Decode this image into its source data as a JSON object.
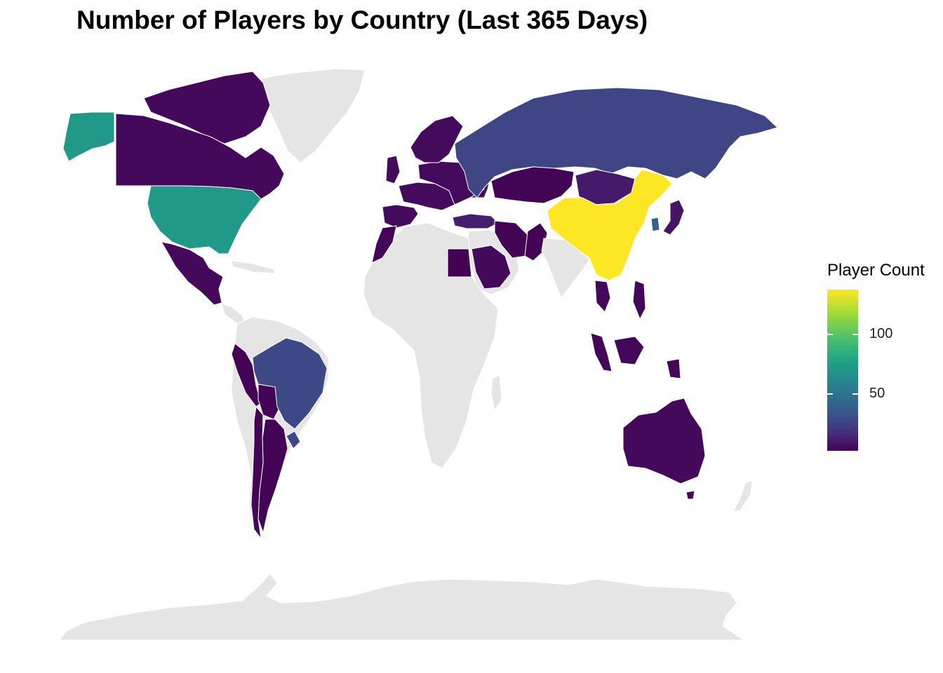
{
  "title": "Number of Players by Country (Last 365 Days)",
  "legend": {
    "title": "Player Count",
    "ticks": [
      {
        "value": 50,
        "label": "50"
      },
      {
        "value": 100,
        "label": "100"
      }
    ],
    "min": 2,
    "max": 138,
    "palette": [
      "#440154",
      "#46327e",
      "#365c8d",
      "#277f8e",
      "#1fa187",
      "#4ac16d",
      "#a0da39",
      "#fde725"
    ]
  },
  "colors": {
    "no_data": "#e5e5e5",
    "border": "#ffffff"
  },
  "countries": [
    {
      "name": "China",
      "count": 138
    },
    {
      "name": "United States",
      "count": 75
    },
    {
      "name": "Alaska (United States)",
      "count": 75
    },
    {
      "name": "Russia",
      "count": 30
    },
    {
      "name": "Brazil",
      "count": 32
    },
    {
      "name": "Uruguay",
      "count": 32
    },
    {
      "name": "South Korea",
      "count": 45
    },
    {
      "name": "Mongolia",
      "count": 12
    },
    {
      "name": "Japan",
      "count": 10
    },
    {
      "name": "Turkey",
      "count": 14
    },
    {
      "name": "Canada",
      "count": 5
    },
    {
      "name": "Mexico",
      "count": 5
    },
    {
      "name": "Kazakhstan",
      "count": 3
    },
    {
      "name": "Iran",
      "count": 3
    },
    {
      "name": "Pakistan",
      "count": 3
    },
    {
      "name": "Saudi Arabia",
      "count": 5
    },
    {
      "name": "Egypt",
      "count": 2
    },
    {
      "name": "Morocco",
      "count": 4
    },
    {
      "name": "Spain",
      "count": 6
    },
    {
      "name": "France",
      "count": 6
    },
    {
      "name": "United Kingdom",
      "count": 6
    },
    {
      "name": "Germany",
      "count": 6
    },
    {
      "name": "Poland",
      "count": 6
    },
    {
      "name": "Ukraine",
      "count": 6
    },
    {
      "name": "Sweden",
      "count": 6
    },
    {
      "name": "Norway",
      "count": 6
    },
    {
      "name": "Finland",
      "count": 6
    },
    {
      "name": "Australia",
      "count": 5
    },
    {
      "name": "Indonesia",
      "count": 4
    },
    {
      "name": "Philippines",
      "count": 4
    },
    {
      "name": "Vietnam",
      "count": 5
    },
    {
      "name": "Thailand",
      "count": 5
    },
    {
      "name": "Malaysia",
      "count": 4
    },
    {
      "name": "Peru",
      "count": 3
    },
    {
      "name": "Bolivia",
      "count": 3
    },
    {
      "name": "Chile",
      "count": 3
    },
    {
      "name": "Argentina",
      "count": 3
    },
    {
      "name": "Colombia",
      "count": 3
    },
    {
      "name": "New Zealand",
      "count": 0
    }
  ]
}
